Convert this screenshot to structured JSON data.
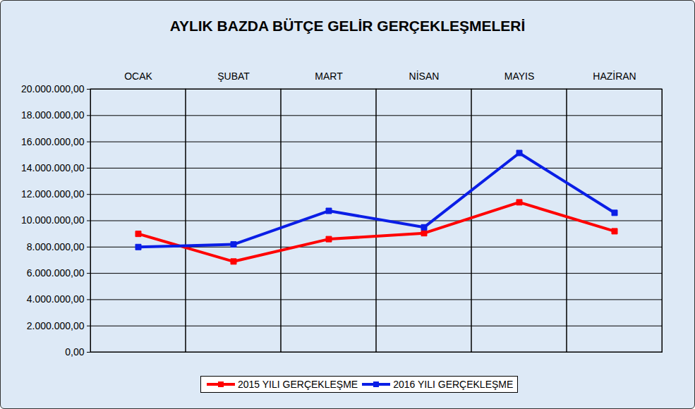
{
  "chart_data": {
    "type": "line",
    "title": "AYLIK BAZDA BÜTÇE GELİR GERÇEKLEŞMELERİ",
    "categories": [
      "OCAK",
      "ŞUBAT",
      "MART",
      "NİSAN",
      "MAYIS",
      "HAZİRAN"
    ],
    "series": [
      {
        "name": "2015 YILI GERÇEKLEŞME",
        "color": "#ff0000",
        "marker": "square",
        "values": [
          9000000,
          6900000,
          8600000,
          9050000,
          11400000,
          9200000
        ]
      },
      {
        "name": "2016 YILI GERÇEKLEŞME",
        "color": "#0a1ee6",
        "marker": "square",
        "values": [
          8000000,
          8200000,
          10750000,
          9500000,
          15150000,
          10600000
        ]
      }
    ],
    "ylim": [
      0,
      20000000
    ],
    "yticks": [
      {
        "value": 0,
        "label": "0,00"
      },
      {
        "value": 2000000,
        "label": "2.000.000,00"
      },
      {
        "value": 4000000,
        "label": "4.000.000,00"
      },
      {
        "value": 6000000,
        "label": "6.000.000,00"
      },
      {
        "value": 8000000,
        "label": "8.000.000,00"
      },
      {
        "value": 10000000,
        "label": "10.000.000,00"
      },
      {
        "value": 12000000,
        "label": "12.000.000,00"
      },
      {
        "value": 14000000,
        "label": "14.000.000,00"
      },
      {
        "value": 16000000,
        "label": "16.000.000,00"
      },
      {
        "value": 18000000,
        "label": "18.000.000,00"
      },
      {
        "value": 20000000,
        "label": "20.000.000,00"
      }
    ],
    "grid": true,
    "legend": "bottom"
  }
}
